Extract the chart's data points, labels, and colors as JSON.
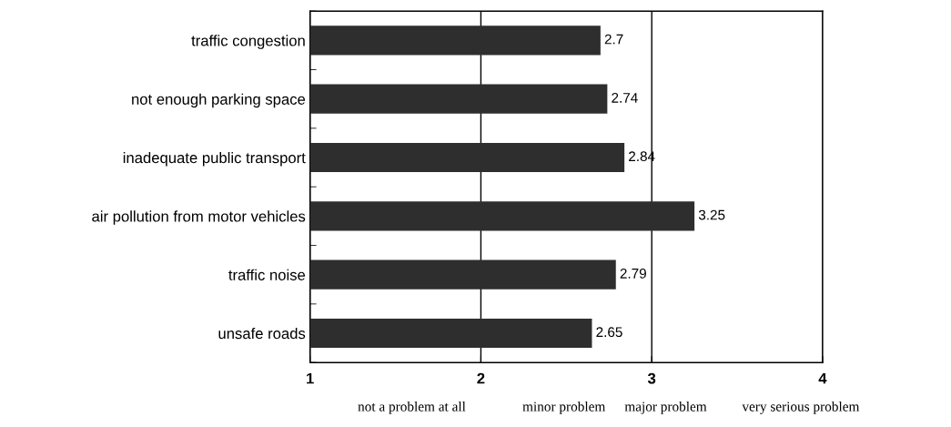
{
  "chart_data": {
    "type": "bar",
    "orientation": "horizontal",
    "categories": [
      "traffic congestion",
      "not enough parking space",
      "inadequate public transport",
      "air pollution from motor vehicles",
      "traffic noise",
      "unsafe roads"
    ],
    "values": [
      2.7,
      2.74,
      2.84,
      3.25,
      2.79,
      2.65
    ],
    "color": "#2e2e2e",
    "xlim": [
      1,
      4
    ],
    "xticks": [
      1,
      2,
      3,
      4
    ],
    "grid": "x",
    "data_labels": true,
    "annotations": [
      "not a problem at all",
      "minor problem",
      "major problem",
      "very serious problem"
    ]
  }
}
